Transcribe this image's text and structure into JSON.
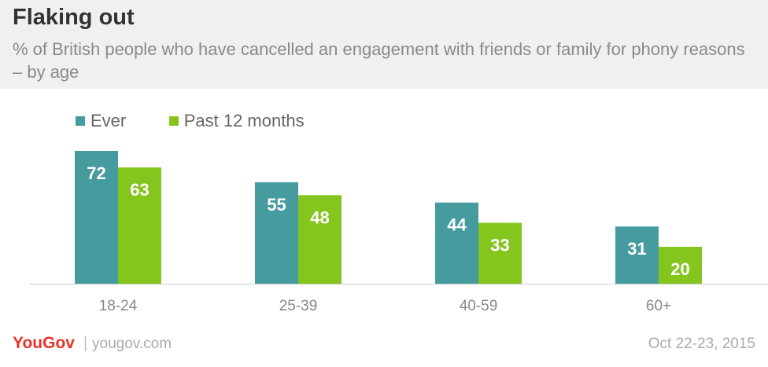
{
  "header": {
    "title": "Flaking out",
    "subtitle": "% of British people who have cancelled an engagement with friends or family for phony reasons – by age"
  },
  "chart_data": {
    "type": "bar",
    "categories": [
      "18-24",
      "25-39",
      "40-59",
      "60+"
    ],
    "series": [
      {
        "name": "Ever",
        "values": [
          72,
          55,
          44,
          31
        ],
        "color": "#469b9f"
      },
      {
        "name": "Past 12 months",
        "values": [
          63,
          48,
          33,
          20
        ],
        "color": "#84c51e"
      }
    ],
    "ylim": [
      0,
      72
    ],
    "grid": false,
    "legend_position": "top-left"
  },
  "footer": {
    "brand": "YouGov",
    "separator": "|",
    "url": "yougov.com",
    "date": "Oct 22-23, 2015"
  }
}
